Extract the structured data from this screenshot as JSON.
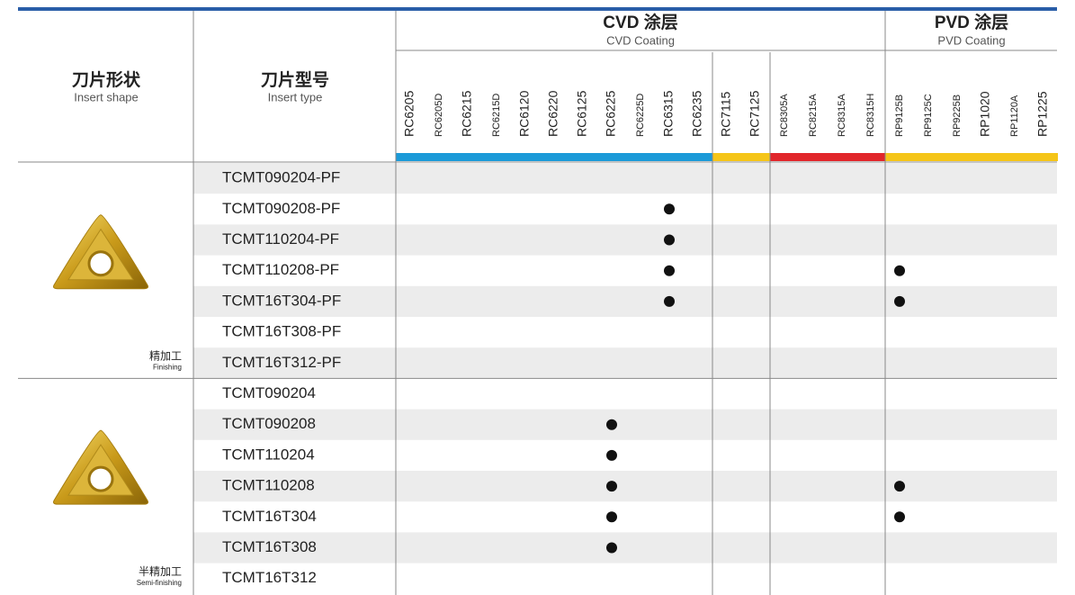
{
  "header": {
    "shape": {
      "zh": "刀片形状",
      "en": "Insert shape"
    },
    "type": {
      "zh": "刀片型号",
      "en": "Insert type"
    }
  },
  "groups": [
    {
      "zh": "CVD 涂层",
      "en": "CVD Coating",
      "families": [
        {
          "color": "#1b9ad8",
          "grades": [
            "RC6205",
            "RC6205D",
            "RC6215",
            "RC6215D",
            "RC6120",
            "RC6220",
            "RC6125",
            "RC6225",
            "RC6225D",
            "RC6315",
            "RC6235"
          ]
        },
        {
          "color": "#f5c518",
          "grades": [
            "RC7115",
            "RC7125"
          ]
        },
        {
          "color": "#e1262b",
          "grades": [
            "RC8305A",
            "RC8215A",
            "RC8315A",
            "RC8315H"
          ]
        }
      ]
    },
    {
      "zh": "PVD 涂层",
      "en": "PVD Coating",
      "families": [
        {
          "color": "#f5c518",
          "grades": [
            "RP9125B",
            "RP9125C",
            "RP9225B",
            "RP1020",
            "RP1120A",
            "RP1225"
          ]
        }
      ]
    }
  ],
  "sections": [
    {
      "zh": "精加工",
      "en": "Finishing",
      "rows": [
        {
          "type": "TCMT090204-PF"
        },
        {
          "type": "TCMT090208-PF",
          "available": [
            "RC6315"
          ]
        },
        {
          "type": "TCMT110204-PF",
          "available": [
            "RC6315"
          ]
        },
        {
          "type": "TCMT110208-PF",
          "available": [
            "RC6315",
            "RP9125B"
          ]
        },
        {
          "type": "TCMT16T304-PF",
          "available": [
            "RC6315",
            "RP9125B"
          ]
        },
        {
          "type": "TCMT16T308-PF"
        },
        {
          "type": "TCMT16T312-PF"
        }
      ]
    },
    {
      "zh": "半精加工",
      "en": "Semi-finishing",
      "rows": [
        {
          "type": "TCMT090204"
        },
        {
          "type": "TCMT090208",
          "available": [
            "RC6225"
          ]
        },
        {
          "type": "TCMT110204",
          "available": [
            "RC6225"
          ]
        },
        {
          "type": "TCMT110208",
          "available": [
            "RC6225",
            "RP9125B"
          ]
        },
        {
          "type": "TCMT16T304",
          "available": [
            "RC6225",
            "RP9125B"
          ]
        },
        {
          "type": "TCMT16T308",
          "available": [
            "RC6225"
          ]
        },
        {
          "type": "TCMT16T312"
        }
      ]
    }
  ]
}
